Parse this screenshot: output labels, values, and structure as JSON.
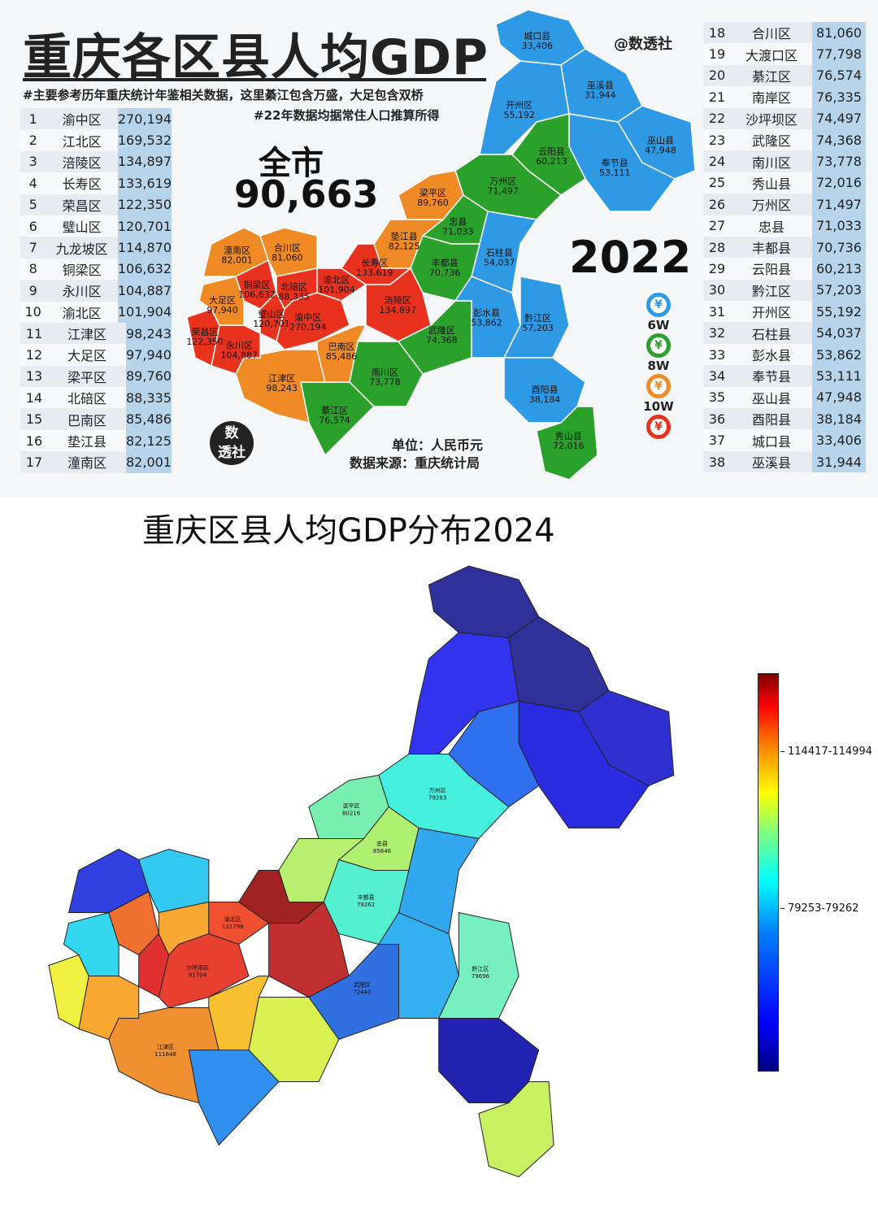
{
  "infographic_2022": {
    "title": "重庆各区县人均GDP",
    "brand": "@数透社",
    "note1": "#主要参考历年重庆统计年鉴相关数据，这里綦江包含万盛，大足包含双桥",
    "note2": "#22年数据均据常住人口推算所得",
    "city_label": "全市",
    "city_value": "90,663",
    "year": "2022",
    "unit": "单位：人民币元",
    "source": "数据来源：重庆统计局",
    "logo": "数透社",
    "legend": [
      {
        "label": "6W",
        "color": "#2e9ae6"
      },
      {
        "label": "8W",
        "color": "#2aa12a"
      },
      {
        "label": "10W",
        "color": "#f08a24"
      },
      {
        "label": "",
        "color": "#e8321e"
      }
    ],
    "legend_symbol": "¥",
    "ranking": [
      [
        "1",
        "渝中区",
        "270,194"
      ],
      [
        "2",
        "江北区",
        "169,532"
      ],
      [
        "3",
        "涪陵区",
        "134,897"
      ],
      [
        "4",
        "长寿区",
        "133,619"
      ],
      [
        "5",
        "荣昌区",
        "122,350"
      ],
      [
        "6",
        "璧山区",
        "120,701"
      ],
      [
        "7",
        "九龙坡区",
        "114,870"
      ],
      [
        "8",
        "铜梁区",
        "106,632"
      ],
      [
        "9",
        "永川区",
        "104,887"
      ],
      [
        "10",
        "渝北区",
        "101,904"
      ],
      [
        "11",
        "江津区",
        "98,243"
      ],
      [
        "12",
        "大足区",
        "97,940"
      ],
      [
        "13",
        "梁平区",
        "89,760"
      ],
      [
        "14",
        "北碚区",
        "88,335"
      ],
      [
        "15",
        "巴南区",
        "85,486"
      ],
      [
        "16",
        "垫江县",
        "82,125"
      ],
      [
        "17",
        "潼南区",
        "82,001"
      ],
      [
        "18",
        "合川区",
        "81,060"
      ],
      [
        "19",
        "大渡口区",
        "77,798"
      ],
      [
        "20",
        "綦江区",
        "76,574"
      ],
      [
        "21",
        "南岸区",
        "76,335"
      ],
      [
        "22",
        "沙坪坝区",
        "74,497"
      ],
      [
        "23",
        "武隆区",
        "74,368"
      ],
      [
        "24",
        "南川区",
        "73,778"
      ],
      [
        "25",
        "秀山县",
        "72,016"
      ],
      [
        "26",
        "万州区",
        "71,497"
      ],
      [
        "27",
        "忠县",
        "71,033"
      ],
      [
        "28",
        "丰都县",
        "70,736"
      ],
      [
        "29",
        "云阳县",
        "60,213"
      ],
      [
        "30",
        "黔江区",
        "57,203"
      ],
      [
        "31",
        "开州区",
        "55,192"
      ],
      [
        "32",
        "石柱县",
        "54,037"
      ],
      [
        "33",
        "彭水县",
        "53,862"
      ],
      [
        "34",
        "奉节县",
        "53,111"
      ],
      [
        "35",
        "巫山县",
        "47,948"
      ],
      [
        "36",
        "酉阳县",
        "38,184"
      ],
      [
        "37",
        "城口县",
        "33,406"
      ],
      [
        "38",
        "巫溪县",
        "31,944"
      ]
    ]
  },
  "map_2022_labels": [
    [
      "城口县",
      "33,406"
    ],
    [
      "巫溪县",
      "31,944"
    ],
    [
      "巫山县",
      "47,948"
    ],
    [
      "奉节县",
      "53,111"
    ],
    [
      "开州区",
      "55,192"
    ],
    [
      "云阳县",
      "60,213"
    ],
    [
      "万州区",
      "71,497"
    ],
    [
      "梁平区",
      "89,760"
    ],
    [
      "忠县",
      "71,033"
    ],
    [
      "石柱县",
      "54,037"
    ],
    [
      "垫江县",
      "82,125"
    ],
    [
      "丰都县",
      "70,736"
    ],
    [
      "长寿区",
      "133,619"
    ],
    [
      "涪陵区",
      "134,897"
    ],
    [
      "武隆区",
      "74,368"
    ],
    [
      "彭水县",
      "53,862"
    ],
    [
      "黔江区",
      "57,203"
    ],
    [
      "酉阳县",
      "38,184"
    ],
    [
      "秀山县",
      "72,016"
    ],
    [
      "南川区",
      "73,778"
    ],
    [
      "綦江区",
      "76,574"
    ],
    [
      "江津区",
      "98,243"
    ],
    [
      "巴南区",
      "85,486"
    ],
    [
      "永川区",
      "104,887"
    ],
    [
      "荣昌区",
      "122,350"
    ],
    [
      "大足区",
      "97,940"
    ],
    [
      "铜梁区",
      "106,632"
    ],
    [
      "潼南区",
      "82,001"
    ],
    [
      "合川区",
      "81,060"
    ],
    [
      "璧山区",
      "120,701"
    ],
    [
      "北碚区",
      "88,335"
    ],
    [
      "渝北区",
      "101,904"
    ],
    [
      "渝中区",
      "270,194"
    ]
  ],
  "map_2024": {
    "title": "重庆区县人均GDP分布2024",
    "colorscale": "jet",
    "colorbar_ticks": [
      "114417-114994",
      "79253-79262"
    ],
    "labels": [
      [
        "万州区",
        "79263"
      ],
      [
        "梁平区",
        "80216"
      ],
      [
        "忠县",
        "85646"
      ],
      [
        "丰都县",
        "79262"
      ],
      [
        "黔江区",
        "79696"
      ],
      [
        "武隆区",
        "72440"
      ],
      [
        "江津区",
        "111648"
      ],
      [
        "渝北区",
        "131798"
      ],
      [
        "沙坪坝区",
        "81704"
      ]
    ]
  },
  "colors": {
    "red": "#e8321e",
    "orange": "#f08a24",
    "green": "#2aa12a",
    "blue": "#2e9ae6"
  }
}
